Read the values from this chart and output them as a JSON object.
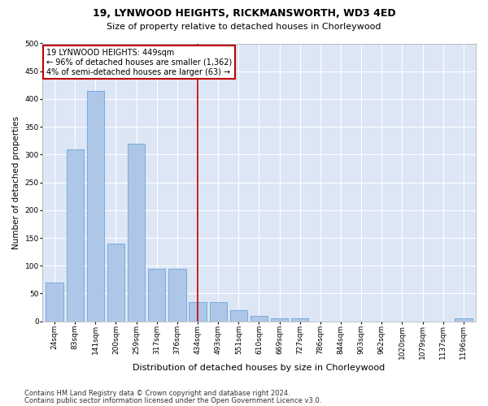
{
  "title1": "19, LYNWOOD HEIGHTS, RICKMANSWORTH, WD3 4ED",
  "title2": "Size of property relative to detached houses in Chorleywood",
  "xlabel": "Distribution of detached houses by size in Chorleywood",
  "ylabel": "Number of detached properties",
  "footer1": "Contains HM Land Registry data © Crown copyright and database right 2024.",
  "footer2": "Contains public sector information licensed under the Open Government Licence v3.0.",
  "annotation_title": "19 LYNWOOD HEIGHTS: 449sqm",
  "annotation_line1": "← 96% of detached houses are smaller (1,362)",
  "annotation_line2": "4% of semi-detached houses are larger (63) →",
  "bar_color": "#aec6e8",
  "bar_edge_color": "#5b9bd5",
  "vline_color": "#c00000",
  "annotation_box_color": "#c00000",
  "bg_color": "#dce6f5",
  "grid_color": "#ffffff",
  "categories": [
    "24sqm",
    "83sqm",
    "141sqm",
    "200sqm",
    "259sqm",
    "317sqm",
    "376sqm",
    "434sqm",
    "493sqm",
    "551sqm",
    "610sqm",
    "669sqm",
    "727sqm",
    "786sqm",
    "844sqm",
    "903sqm",
    "962sqm",
    "1020sqm",
    "1079sqm",
    "1137sqm",
    "1196sqm"
  ],
  "values": [
    70,
    310,
    415,
    140,
    320,
    95,
    95,
    35,
    35,
    20,
    10,
    5,
    5,
    0,
    0,
    0,
    0,
    0,
    0,
    0,
    5
  ],
  "vline_x_index": 7,
  "ylim": [
    0,
    500
  ],
  "yticks": [
    0,
    50,
    100,
    150,
    200,
    250,
    300,
    350,
    400,
    450,
    500
  ],
  "title1_fontsize": 9,
  "title2_fontsize": 8,
  "xlabel_fontsize": 8,
  "ylabel_fontsize": 7.5,
  "tick_fontsize": 6.5,
  "footer_fontsize": 6,
  "ann_fontsize": 7
}
